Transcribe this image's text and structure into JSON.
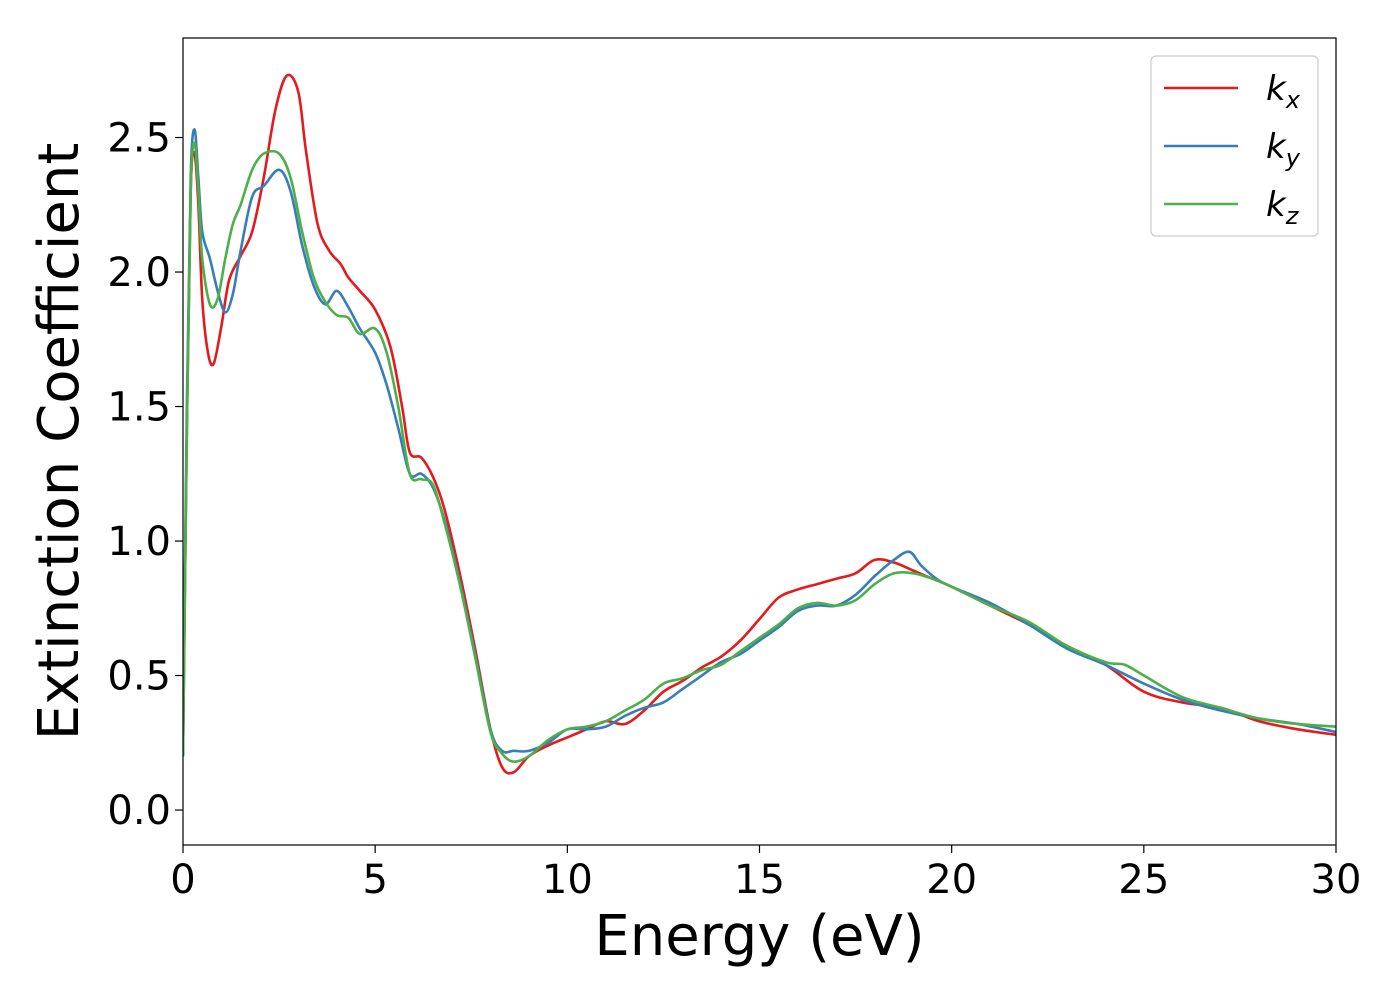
{
  "chart_data": {
    "type": "line",
    "title": "",
    "xlabel": "Energy (eV)",
    "ylabel": "Extinction Coefficient",
    "xlim": [
      0,
      30
    ],
    "ylim": [
      -0.13,
      2.87
    ],
    "xticks": [
      0,
      5,
      10,
      15,
      20,
      25,
      30
    ],
    "yticks": [
      0.0,
      0.5,
      1.0,
      1.5,
      2.0,
      2.5
    ],
    "xtick_labels": [
      "0",
      "5",
      "10",
      "15",
      "20",
      "25",
      "30"
    ],
    "ytick_labels": [
      "0.0",
      "0.5",
      "1.0",
      "1.5",
      "2.0",
      "2.5"
    ],
    "grid": false,
    "legend_position": "top-right",
    "series": [
      {
        "name": "k",
        "subscript": "x",
        "color": "#e41a1c",
        "points": [
          [
            0,
            0.2
          ],
          [
            0.1,
            1.4
          ],
          [
            0.2,
            2.3
          ],
          [
            0.3,
            2.44
          ],
          [
            0.4,
            2.25
          ],
          [
            0.5,
            1.9
          ],
          [
            0.65,
            1.7
          ],
          [
            0.8,
            1.66
          ],
          [
            1.0,
            1.8
          ],
          [
            1.2,
            1.97
          ],
          [
            1.5,
            2.06
          ],
          [
            1.8,
            2.15
          ],
          [
            2.1,
            2.35
          ],
          [
            2.4,
            2.6
          ],
          [
            2.7,
            2.73
          ],
          [
            3.0,
            2.67
          ],
          [
            3.2,
            2.45
          ],
          [
            3.5,
            2.18
          ],
          [
            3.8,
            2.08
          ],
          [
            4.1,
            2.03
          ],
          [
            4.3,
            1.98
          ],
          [
            4.6,
            1.93
          ],
          [
            5.0,
            1.86
          ],
          [
            5.4,
            1.72
          ],
          [
            5.7,
            1.5
          ],
          [
            5.9,
            1.33
          ],
          [
            6.2,
            1.31
          ],
          [
            6.5,
            1.24
          ],
          [
            6.8,
            1.12
          ],
          [
            7.2,
            0.88
          ],
          [
            7.6,
            0.6
          ],
          [
            8.0,
            0.3
          ],
          [
            8.3,
            0.16
          ],
          [
            8.6,
            0.14
          ],
          [
            9.0,
            0.2
          ],
          [
            9.5,
            0.24
          ],
          [
            10.0,
            0.27
          ],
          [
            10.5,
            0.3
          ],
          [
            11.0,
            0.33
          ],
          [
            11.5,
            0.32
          ],
          [
            12.0,
            0.37
          ],
          [
            12.5,
            0.44
          ],
          [
            13.0,
            0.48
          ],
          [
            13.5,
            0.53
          ],
          [
            14.0,
            0.57
          ],
          [
            14.5,
            0.63
          ],
          [
            15.0,
            0.71
          ],
          [
            15.5,
            0.79
          ],
          [
            16.0,
            0.82
          ],
          [
            16.5,
            0.84
          ],
          [
            17.0,
            0.86
          ],
          [
            17.5,
            0.88
          ],
          [
            18.0,
            0.93
          ],
          [
            18.5,
            0.92
          ],
          [
            19.0,
            0.89
          ],
          [
            19.5,
            0.86
          ],
          [
            20.0,
            0.83
          ],
          [
            21.0,
            0.76
          ],
          [
            22.0,
            0.69
          ],
          [
            23.0,
            0.61
          ],
          [
            24.0,
            0.54
          ],
          [
            25.0,
            0.44
          ],
          [
            26.0,
            0.4
          ],
          [
            27.0,
            0.38
          ],
          [
            28.0,
            0.33
          ],
          [
            29.0,
            0.3
          ],
          [
            30.0,
            0.28
          ]
        ]
      },
      {
        "name": "k",
        "subscript": "y",
        "color": "#377eb8",
        "points": [
          [
            0,
            0.2
          ],
          [
            0.1,
            1.5
          ],
          [
            0.2,
            2.35
          ],
          [
            0.3,
            2.53
          ],
          [
            0.4,
            2.35
          ],
          [
            0.5,
            2.15
          ],
          [
            0.7,
            2.05
          ],
          [
            0.9,
            1.93
          ],
          [
            1.1,
            1.85
          ],
          [
            1.3,
            1.92
          ],
          [
            1.5,
            2.08
          ],
          [
            1.8,
            2.28
          ],
          [
            2.1,
            2.32
          ],
          [
            2.5,
            2.38
          ],
          [
            2.8,
            2.3
          ],
          [
            3.1,
            2.1
          ],
          [
            3.4,
            1.95
          ],
          [
            3.7,
            1.88
          ],
          [
            4.0,
            1.93
          ],
          [
            4.3,
            1.87
          ],
          [
            4.6,
            1.79
          ],
          [
            5.0,
            1.7
          ],
          [
            5.3,
            1.58
          ],
          [
            5.6,
            1.42
          ],
          [
            5.9,
            1.25
          ],
          [
            6.2,
            1.25
          ],
          [
            6.5,
            1.2
          ],
          [
            6.8,
            1.08
          ],
          [
            7.2,
            0.85
          ],
          [
            7.6,
            0.58
          ],
          [
            8.0,
            0.3
          ],
          [
            8.3,
            0.22
          ],
          [
            8.6,
            0.22
          ],
          [
            9.0,
            0.22
          ],
          [
            9.5,
            0.25
          ],
          [
            10.0,
            0.3
          ],
          [
            10.5,
            0.3
          ],
          [
            11.0,
            0.31
          ],
          [
            11.5,
            0.35
          ],
          [
            12.0,
            0.38
          ],
          [
            12.5,
            0.4
          ],
          [
            13.0,
            0.45
          ],
          [
            13.5,
            0.5
          ],
          [
            14.0,
            0.55
          ],
          [
            14.5,
            0.58
          ],
          [
            15.0,
            0.63
          ],
          [
            15.5,
            0.68
          ],
          [
            16.0,
            0.74
          ],
          [
            16.5,
            0.76
          ],
          [
            17.0,
            0.76
          ],
          [
            17.5,
            0.8
          ],
          [
            18.0,
            0.87
          ],
          [
            18.5,
            0.93
          ],
          [
            18.9,
            0.96
          ],
          [
            19.2,
            0.91
          ],
          [
            19.6,
            0.86
          ],
          [
            20.0,
            0.83
          ],
          [
            21.0,
            0.77
          ],
          [
            22.0,
            0.69
          ],
          [
            23.0,
            0.6
          ],
          [
            24.0,
            0.54
          ],
          [
            25.0,
            0.47
          ],
          [
            26.0,
            0.41
          ],
          [
            27.0,
            0.37
          ],
          [
            28.0,
            0.34
          ],
          [
            29.0,
            0.32
          ],
          [
            30.0,
            0.29
          ]
        ]
      },
      {
        "name": "k",
        "subscript": "z",
        "color": "#4daf4a",
        "points": [
          [
            0,
            0.2
          ],
          [
            0.1,
            1.4
          ],
          [
            0.2,
            2.3
          ],
          [
            0.3,
            2.48
          ],
          [
            0.4,
            2.3
          ],
          [
            0.5,
            2.05
          ],
          [
            0.7,
            1.88
          ],
          [
            0.9,
            1.9
          ],
          [
            1.1,
            2.05
          ],
          [
            1.3,
            2.18
          ],
          [
            1.5,
            2.25
          ],
          [
            1.8,
            2.38
          ],
          [
            2.1,
            2.44
          ],
          [
            2.5,
            2.44
          ],
          [
            2.8,
            2.35
          ],
          [
            3.1,
            2.15
          ],
          [
            3.4,
            1.98
          ],
          [
            3.7,
            1.89
          ],
          [
            4.0,
            1.84
          ],
          [
            4.3,
            1.83
          ],
          [
            4.6,
            1.77
          ],
          [
            5.0,
            1.79
          ],
          [
            5.3,
            1.7
          ],
          [
            5.6,
            1.5
          ],
          [
            5.9,
            1.25
          ],
          [
            6.2,
            1.23
          ],
          [
            6.5,
            1.21
          ],
          [
            6.8,
            1.07
          ],
          [
            7.2,
            0.84
          ],
          [
            7.6,
            0.57
          ],
          [
            8.0,
            0.29
          ],
          [
            8.3,
            0.21
          ],
          [
            8.6,
            0.18
          ],
          [
            9.0,
            0.2
          ],
          [
            9.5,
            0.26
          ],
          [
            10.0,
            0.3
          ],
          [
            10.5,
            0.31
          ],
          [
            11.0,
            0.33
          ],
          [
            11.5,
            0.37
          ],
          [
            12.0,
            0.41
          ],
          [
            12.5,
            0.47
          ],
          [
            13.0,
            0.49
          ],
          [
            13.5,
            0.52
          ],
          [
            14.0,
            0.54
          ],
          [
            14.5,
            0.59
          ],
          [
            15.0,
            0.64
          ],
          [
            15.5,
            0.69
          ],
          [
            16.0,
            0.75
          ],
          [
            16.5,
            0.77
          ],
          [
            17.0,
            0.76
          ],
          [
            17.5,
            0.78
          ],
          [
            18.0,
            0.84
          ],
          [
            18.5,
            0.88
          ],
          [
            19.0,
            0.88
          ],
          [
            19.5,
            0.86
          ],
          [
            20.0,
            0.83
          ],
          [
            21.0,
            0.76
          ],
          [
            22.0,
            0.7
          ],
          [
            23.0,
            0.61
          ],
          [
            24.0,
            0.55
          ],
          [
            24.5,
            0.54
          ],
          [
            25.0,
            0.5
          ],
          [
            26.0,
            0.42
          ],
          [
            27.0,
            0.38
          ],
          [
            28.0,
            0.34
          ],
          [
            29.0,
            0.32
          ],
          [
            30.0,
            0.31
          ]
        ]
      }
    ]
  }
}
